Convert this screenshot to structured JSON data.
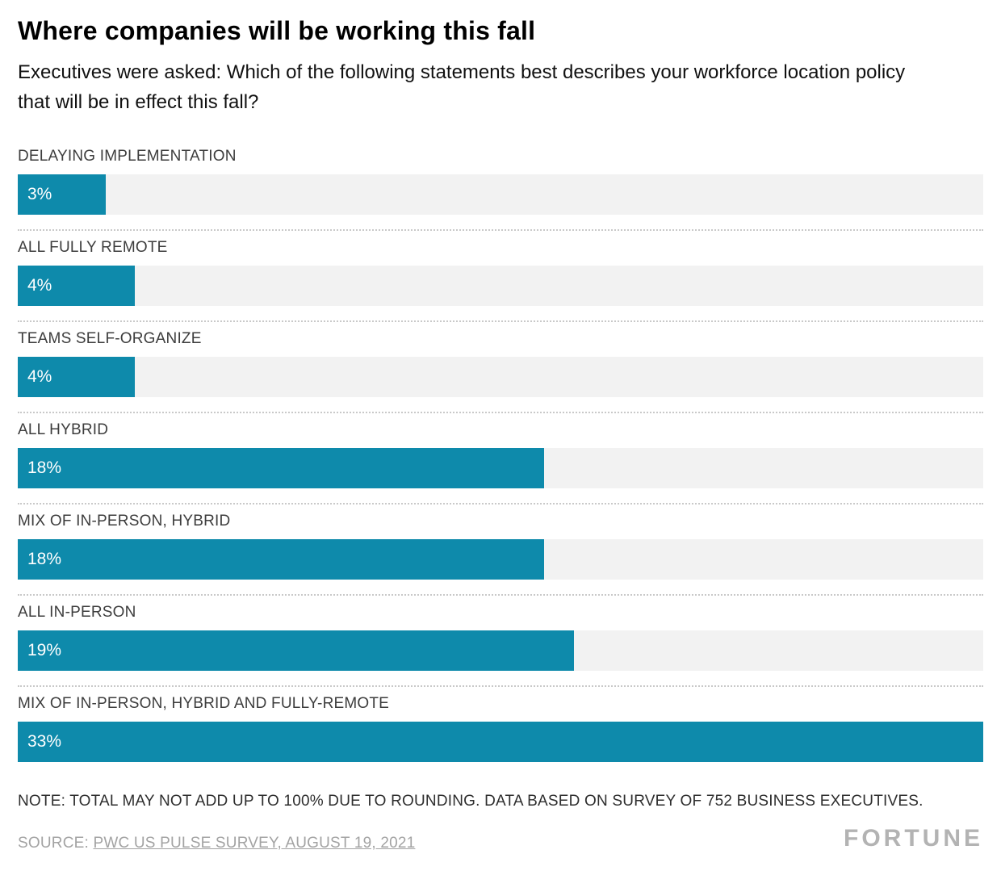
{
  "page": {
    "title": "Where companies will be working this fall",
    "subtitle": "Executives were asked: Which of the following statements best describes your workforce location policy that will be in effect this fall?",
    "note": "NOTE: TOTAL MAY NOT ADD UP TO 100% DUE TO ROUNDING. DATA BASED ON SURVEY OF 752 BUSINESS EXECUTIVES.",
    "source_prefix": "SOURCE: ",
    "source_link": "PWC US PULSE SURVEY, AUGUST 19, 2021",
    "logo": "FORTUNE"
  },
  "chart_data": {
    "type": "bar",
    "orientation": "horizontal",
    "title": "Where companies will be working this fall",
    "categories": [
      "DELAYING IMPLEMENTATION",
      "ALL FULLY REMOTE",
      "TEAMS SELF-ORGANIZE",
      "ALL HYBRID",
      "MIX OF IN-PERSON, HYBRID",
      "ALL IN-PERSON",
      "MIX OF IN-PERSON, HYBRID AND FULLY-REMOTE"
    ],
    "values": [
      3,
      4,
      4,
      18,
      18,
      19,
      33
    ],
    "value_labels": [
      "3%",
      "4%",
      "4%",
      "18%",
      "18%",
      "19%",
      "33%"
    ],
    "xlim": [
      0,
      33
    ],
    "unit": "percent",
    "legend": "none",
    "grid": "off",
    "colors": {
      "bar": "#0E8AAB",
      "track": "#F2F2F2",
      "value_text": "#FFFFFF"
    }
  }
}
